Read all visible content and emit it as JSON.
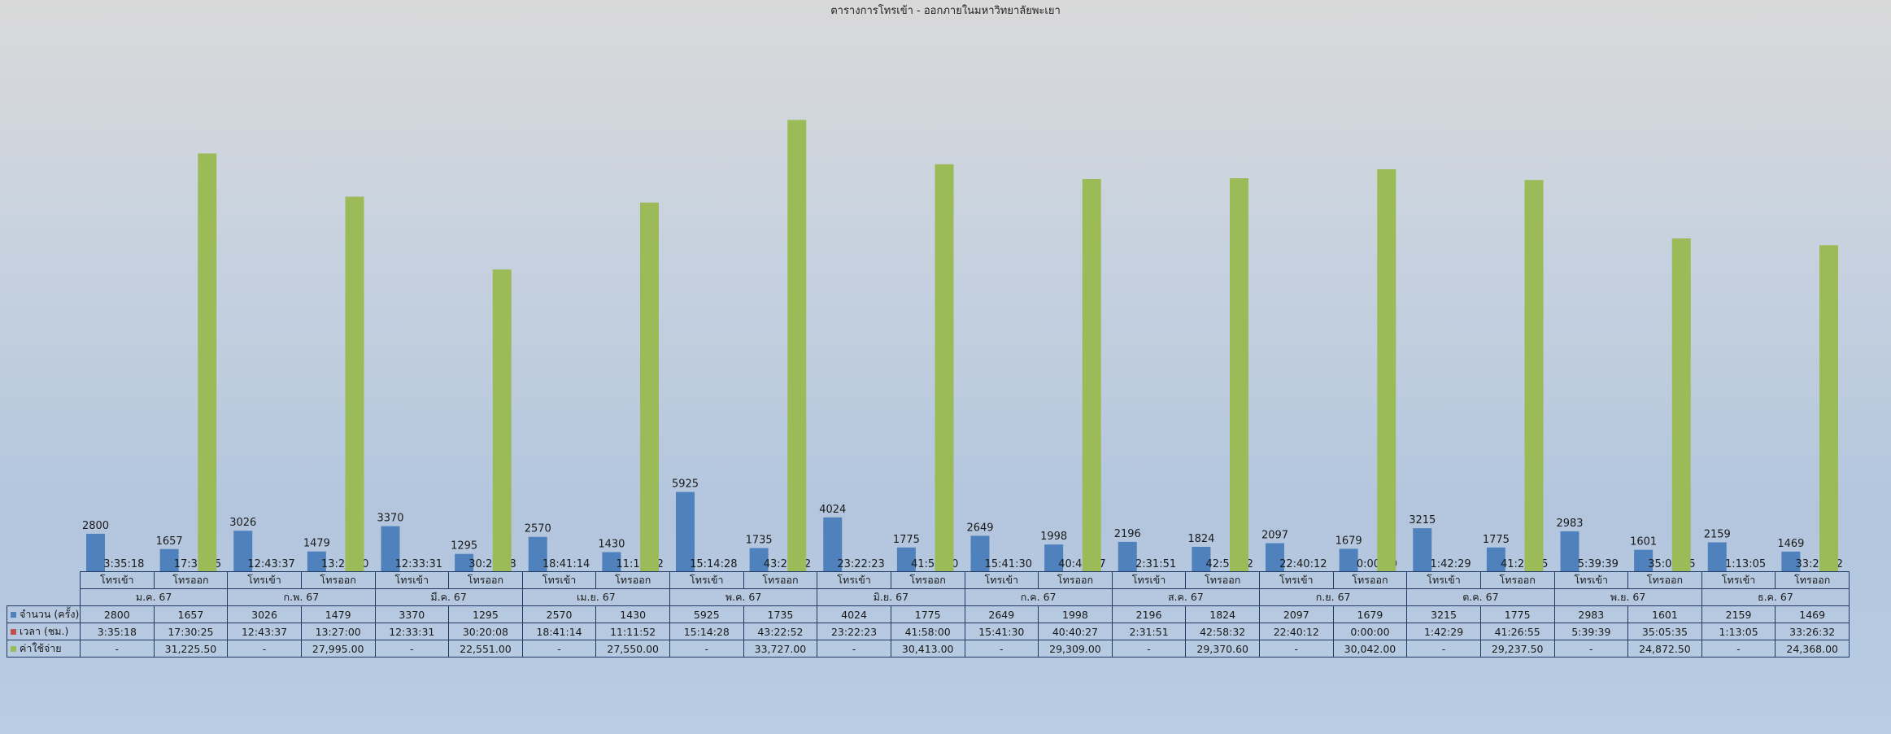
{
  "title": "ตารางการโทรเข้า - ออกภายในมหาวิทยาลัยพะเยา",
  "colors": {
    "count": "#4f81bd",
    "time": "#c0504d",
    "cost": "#9bbb59"
  },
  "chart_data": {
    "type": "bar",
    "title": "ตารางการโทรเข้า - ออกภายในมหาวิทยาลัยพะเยา",
    "months": [
      "ม.ค. 67",
      "ก.พ. 67",
      "มี.ค. 67",
      "เม.ย. 67",
      "พ.ค. 67",
      "มิ.ย. 67",
      "ก.ค. 67",
      "ส.ค. 67",
      "ก.ย. 67",
      "ต.ค. 67",
      "พ.ย. 67",
      "ธ.ค. 67"
    ],
    "subcategories": [
      "โทรเข้า",
      "โทรออก"
    ],
    "series": [
      {
        "name": "จำนวน (ครั้ง)",
        "values": [
          2800,
          1657,
          3026,
          1479,
          3370,
          1295,
          2570,
          1430,
          5925,
          1735,
          4024,
          1775,
          2649,
          1998,
          2196,
          1824,
          2097,
          1679,
          3215,
          1775,
          2983,
          1601,
          2159,
          1469
        ]
      },
      {
        "name": "เวลา (ชม.)",
        "values": [
          "3:35:18",
          "17:30:25",
          "12:43:37",
          "13:27:00",
          "12:33:31",
          "30:20:08",
          "18:41:14",
          "11:11:52",
          "15:14:28",
          "43:22:52",
          "23:22:23",
          "41:58:00",
          "15:41:30",
          "40:40:27",
          "2:31:51",
          "42:58:32",
          "22:40:12",
          "0:00:00",
          "1:42:29",
          "41:26:55",
          "5:39:39",
          "35:05:35",
          "1:13:05",
          "33:26:32"
        ]
      },
      {
        "name": "ค่าใช้จ่าย",
        "values": [
          null,
          31225.5,
          null,
          27995.0,
          null,
          22551.0,
          null,
          27550.0,
          null,
          33727.0,
          null,
          30413.0,
          null,
          29309.0,
          null,
          29370.6,
          null,
          30042.0,
          null,
          29237.5,
          null,
          24872.5,
          null,
          24368.0
        ],
        "display": [
          "-",
          "31,225.50",
          "-",
          "27,995.00",
          "-",
          "22,551.00",
          "-",
          "27,550.00",
          "-",
          "33,727.00",
          "-",
          "30,413.00",
          "-",
          "29,309.00",
          "-",
          "29,370.60",
          "-",
          "30,042.00",
          "-",
          "29,237.50",
          "-",
          "24,872.50",
          "-",
          "24,368.00"
        ]
      }
    ]
  }
}
